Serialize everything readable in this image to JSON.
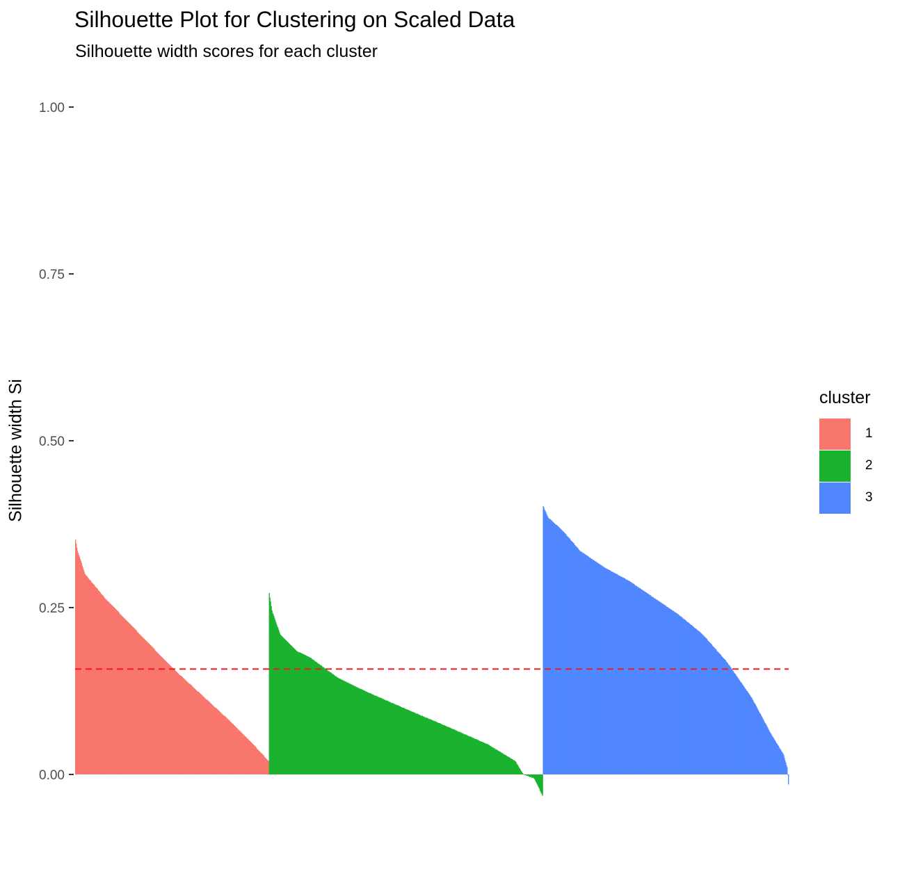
{
  "chart_data": {
    "type": "bar",
    "title": "Silhouette Plot for Clustering on Scaled Data",
    "subtitle": "Silhouette width scores for each cluster",
    "xlabel": "",
    "ylabel": "Silhouette width Si",
    "ylim": [
      -0.04,
      1.0
    ],
    "yticks": [
      "0.00",
      "0.25",
      "0.50",
      "0.75",
      "1.00"
    ],
    "grid": false,
    "legend": {
      "title": "cluster",
      "position": "right"
    },
    "average_line": {
      "value": 0.158,
      "color": "#ee1c1c",
      "style": "dashed"
    },
    "series": [
      {
        "name": "1",
        "color": "#f8766d",
        "count": 290,
        "profile": [
          [
            0,
            0.352
          ],
          [
            0.01,
            0.335
          ],
          [
            0.05,
            0.3
          ],
          [
            0.15,
            0.265
          ],
          [
            0.25,
            0.235
          ],
          [
            0.35,
            0.205
          ],
          [
            0.5,
            0.16
          ],
          [
            0.65,
            0.12
          ],
          [
            0.8,
            0.08
          ],
          [
            0.92,
            0.045
          ],
          [
            1.0,
            0.02
          ]
        ]
      },
      {
        "name": "2",
        "color": "#1ab22e",
        "count": 410,
        "profile": [
          [
            0,
            0.272
          ],
          [
            0.01,
            0.245
          ],
          [
            0.04,
            0.21
          ],
          [
            0.1,
            0.185
          ],
          [
            0.15,
            0.175
          ],
          [
            0.25,
            0.145
          ],
          [
            0.35,
            0.125
          ],
          [
            0.5,
            0.098
          ],
          [
            0.65,
            0.072
          ],
          [
            0.8,
            0.045
          ],
          [
            0.9,
            0.02
          ],
          [
            0.93,
            0.0
          ],
          [
            0.97,
            -0.006
          ],
          [
            1.0,
            -0.032
          ]
        ]
      },
      {
        "name": "3",
        "color": "#5087ff",
        "count": 368,
        "profile": [
          [
            0,
            0.402
          ],
          [
            0.02,
            0.385
          ],
          [
            0.08,
            0.365
          ],
          [
            0.15,
            0.335
          ],
          [
            0.25,
            0.31
          ],
          [
            0.35,
            0.29
          ],
          [
            0.45,
            0.265
          ],
          [
            0.55,
            0.24
          ],
          [
            0.65,
            0.21
          ],
          [
            0.75,
            0.168
          ],
          [
            0.85,
            0.115
          ],
          [
            0.93,
            0.06
          ],
          [
            0.98,
            0.03
          ],
          [
            0.995,
            0.01
          ],
          [
            1.0,
            -0.015
          ]
        ]
      }
    ]
  }
}
